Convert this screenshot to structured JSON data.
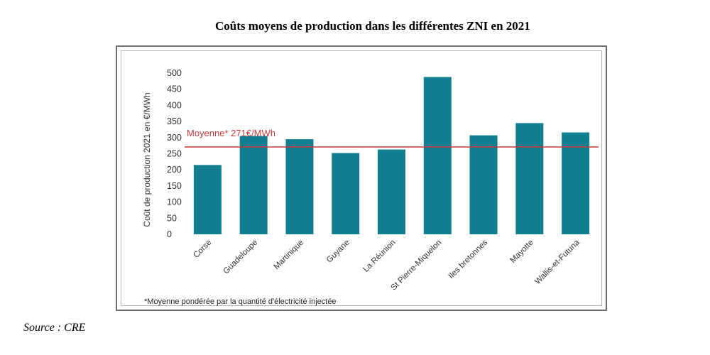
{
  "title": "Coûts moyens de production dans les différentes ZNI en 2021",
  "source": "Source : CRE",
  "chart_data": {
    "type": "bar",
    "ylabel": "Coût de production 2021 en €/MWh",
    "xlabel": "",
    "ylim": [
      0,
      500
    ],
    "yticks": [
      0,
      50,
      100,
      150,
      200,
      250,
      300,
      350,
      400,
      450,
      500
    ],
    "categories": [
      "Corse",
      "Guadeloupe",
      "Martinique",
      "Guyane",
      "La Réunion",
      "St Pierre-Miquelon",
      "Iles bretonnes",
      "Mayotte",
      "Wallis-et-Futuna"
    ],
    "values": [
      215,
      305,
      295,
      252,
      263,
      488,
      307,
      345,
      316
    ],
    "reference_line": {
      "value": 271,
      "label": "Moyenne* 271€/MWh",
      "color": "#c8393b"
    },
    "bar_color": "#117f90",
    "footnote": "*Moyenne pondérée par la quantité d'électricité injectée",
    "grid": false,
    "legend": "none"
  }
}
